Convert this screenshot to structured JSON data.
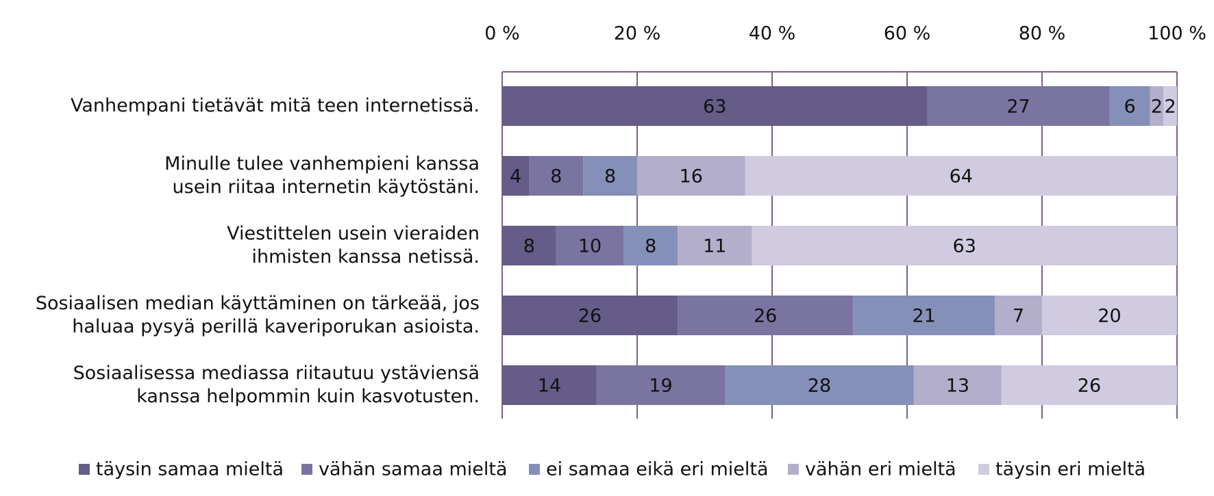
{
  "chart_data": {
    "type": "stacked-bar-horizontal",
    "categories": [
      [
        "Vanhempani tietävät mitä teen internetissä."
      ],
      [
        "Minulle tulee vanhempieni kanssa",
        "usein riitaa internetin käytöstäni."
      ],
      [
        "Viestittelen usein vieraiden",
        "ihmisten kanssa netissä."
      ],
      [
        "Sosiaalisen median käyttäminen on tärkeää, jos",
        "haluaa pysyä perillä kaveriporukan asioista."
      ],
      [
        "Sosiaalisessa mediassa riitautuu ystäviensä",
        "kanssa helpommin kuin kasvotusten."
      ]
    ],
    "series": [
      {
        "name": "täysin samaa mieltä",
        "color": "#655c87",
        "values": [
          63,
          4,
          8,
          26,
          14
        ]
      },
      {
        "name": "vähän samaa mieltä",
        "color": "#7a74a0",
        "values": [
          27,
          8,
          10,
          26,
          19
        ]
      },
      {
        "name": "ei samaa eikä eri mieltä",
        "color": "#8590b8",
        "values": [
          6,
          8,
          8,
          21,
          28
        ]
      },
      {
        "name": "vähän eri mieltä",
        "color": "#b3aecb",
        "values": [
          2,
          16,
          11,
          7,
          13
        ]
      },
      {
        "name": "täysin eri mieltä",
        "color": "#d0cbe0",
        "values": [
          2,
          64,
          63,
          20,
          26
        ]
      }
    ],
    "xlim": [
      0,
      100
    ],
    "xticks": [
      {
        "value": 0,
        "label": "0 %"
      },
      {
        "value": 20,
        "label": "20 %"
      },
      {
        "value": 40,
        "label": "40 %"
      },
      {
        "value": 60,
        "label": "60 %"
      },
      {
        "value": 80,
        "label": "80 %"
      },
      {
        "value": 100,
        "label": "100 %"
      }
    ],
    "grid": true,
    "legend": "bottom"
  }
}
